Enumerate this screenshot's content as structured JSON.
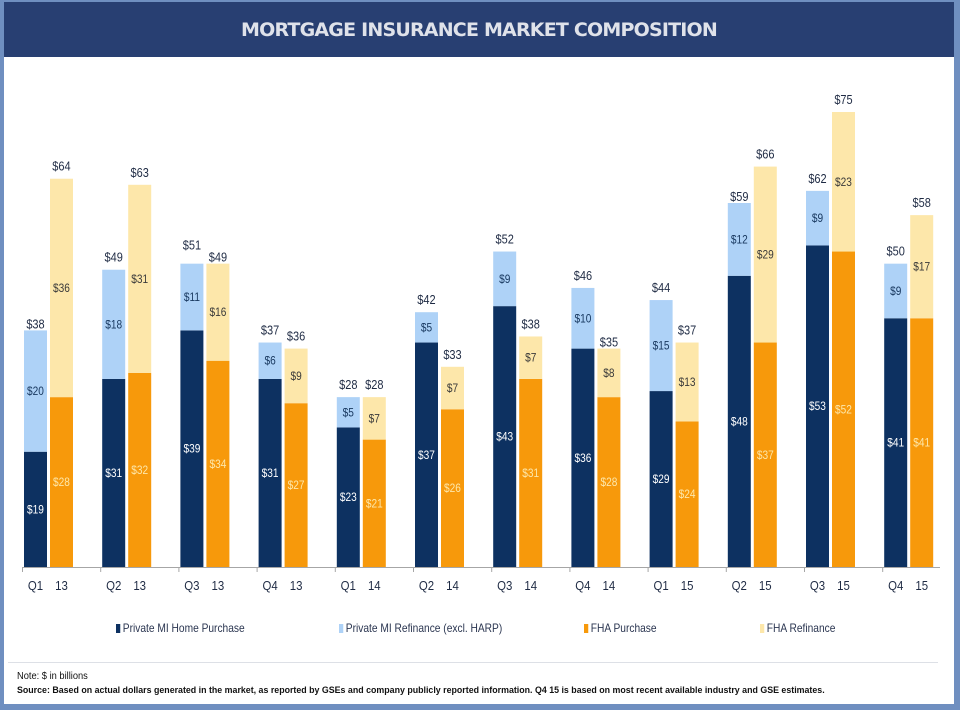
{
  "header": {
    "title": "MORTGAGE INSURANCE MARKET COMPOSITION"
  },
  "colors": {
    "private_purchase": "#0d3161",
    "private_refi": "#aed2f7",
    "fha_purchase": "#f7990b",
    "fha_refi": "#fde7aa",
    "header_bg": "#283f72"
  },
  "chart_data": {
    "type": "bar",
    "stacked": true,
    "grouped": true,
    "title": "MORTGAGE INSURANCE MARKET COMPOSITION",
    "xlabel": "",
    "ylabel": "",
    "units": "$ in billions",
    "ylim": [
      0,
      80
    ],
    "grid": false,
    "legend_position": "bottom",
    "categories": [
      "Q1  13",
      "Q2  13",
      "Q3  13",
      "Q4  13",
      "Q1  14",
      "Q2  14",
      "Q3  14",
      "Q4  14",
      "Q1  15",
      "Q2  15",
      "Q3  15",
      "Q4  15"
    ],
    "groups": [
      {
        "name": "Private MI",
        "series": [
          {
            "name": "Private MI Home Purchase",
            "color_key": "private_purchase",
            "values": [
              19,
              31,
              39,
              31,
              23,
              37,
              43,
              36,
              29,
              48,
              53,
              41
            ]
          },
          {
            "name": "Private MI Refinance (excl. HARP)",
            "color_key": "private_refi",
            "values": [
              20,
              18,
              11,
              6,
              5,
              5,
              9,
              10,
              15,
              12,
              9,
              9
            ]
          }
        ],
        "totals": [
          38,
          49,
          51,
          37,
          28,
          42,
          52,
          46,
          44,
          59,
          62,
          50
        ]
      },
      {
        "name": "FHA",
        "series": [
          {
            "name": "FHA Purchase",
            "color_key": "fha_purchase",
            "values": [
              28,
              32,
              34,
              27,
              21,
              26,
              31,
              28,
              24,
              37,
              52,
              41
            ]
          },
          {
            "name": "FHA Refinance",
            "color_key": "fha_refi",
            "values": [
              36,
              31,
              16,
              9,
              7,
              7,
              7,
              8,
              13,
              29,
              23,
              17
            ]
          }
        ],
        "totals": [
          64,
          63,
          49,
          36,
          28,
          33,
          38,
          35,
          37,
          66,
          75,
          58
        ]
      }
    ]
  },
  "legend": [
    {
      "label": "Private MI Home Purchase",
      "color_key": "private_purchase"
    },
    {
      "label": "Private MI Refinance (excl. HARP)",
      "color_key": "private_refi"
    },
    {
      "label": "FHA Purchase",
      "color_key": "fha_purchase"
    },
    {
      "label": "FHA Refinance",
      "color_key": "fha_refi"
    }
  ],
  "notes": {
    "note": "Note:  $ in billions",
    "source": "Source: Based on actual dollars generated in the market, as reported by GSEs and company publicly reported information.  Q4 15 is based on most recent available  industry and GSE estimates."
  }
}
